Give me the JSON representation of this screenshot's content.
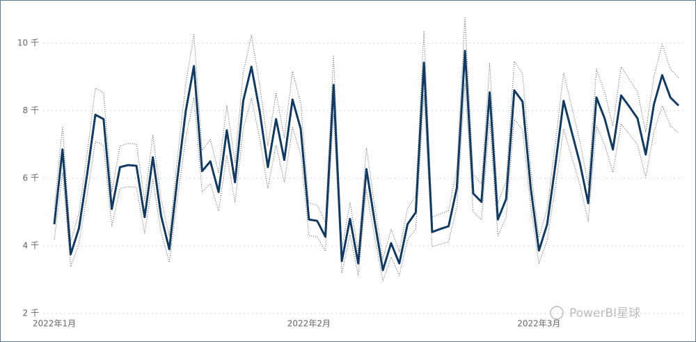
{
  "chart_data": {
    "type": "line",
    "categories": [
      "2022年1月",
      null,
      null,
      null,
      null,
      null,
      null,
      null,
      null,
      null,
      null,
      null,
      null,
      null,
      null,
      null,
      null,
      null,
      null,
      null,
      null,
      null,
      null,
      null,
      null,
      null,
      null,
      null,
      null,
      null,
      null,
      "2022年2月",
      null,
      null,
      null,
      null,
      null,
      null,
      null,
      null,
      null,
      null,
      null,
      null,
      null,
      null,
      null,
      null,
      null,
      null,
      null,
      null,
      null,
      null,
      null,
      null,
      null,
      null,
      null,
      "2022年3月",
      null,
      null,
      null,
      null,
      null,
      null,
      null,
      null,
      null,
      null,
      null,
      null,
      null,
      null,
      null,
      null,
      null
    ],
    "series": [
      {
        "color": "#0e3a63",
        "style": "solid",
        "values": [
          4640,
          6850,
          3750,
          4520,
          6120,
          7880,
          7750,
          5090,
          6330,
          6390,
          6370,
          4850,
          6620,
          4890,
          3900,
          6020,
          7980,
          9320,
          6210,
          6500,
          5590,
          7420,
          5880,
          8290,
          9300,
          7980,
          6330,
          7750,
          6540,
          8330,
          7460,
          4780,
          4740,
          4270,
          8760,
          3550,
          4800,
          3480,
          6270,
          4720,
          3280,
          4080,
          3480,
          4640,
          4990,
          9420,
          4410,
          4500,
          4580,
          5710,
          9770,
          5550,
          5300,
          8540,
          4780,
          5380,
          8600,
          8270,
          5710,
          3860,
          4640,
          6390,
          8290,
          7360,
          6430,
          5260,
          8390,
          7770,
          6850,
          8450,
          8120,
          7770,
          6700,
          8190,
          9050,
          8390,
          8150
        ]
      },
      {
        "color": "#555555",
        "style": "dotted",
        "values": [
          5100,
          7540,
          4130,
          4970,
          6730,
          8670,
          8530,
          5600,
          6960,
          7030,
          7010,
          5340,
          7280,
          5380,
          4290,
          6620,
          8780,
          10250,
          6830,
          7150,
          6150,
          8160,
          6470,
          9120,
          10230,
          8780,
          6960,
          8530,
          7190,
          9160,
          8210,
          5260,
          5210,
          4700,
          9640,
          3910,
          5280,
          3830,
          6900,
          5190,
          3610,
          4490,
          3830,
          5100,
          5490,
          10360,
          4850,
          4950,
          5040,
          6280,
          10750,
          6110,
          5830,
          9390,
          5260,
          5920,
          9460,
          9100,
          6280,
          4250,
          5100,
          7030,
          9120,
          8100,
          7070,
          5790,
          9230,
          8550,
          7540,
          9300,
          8930,
          8550,
          7370,
          9010,
          9960,
          9230,
          8970
        ]
      },
      {
        "color": "#555555",
        "style": "dotted",
        "values": [
          4180,
          6170,
          3380,
          4070,
          5510,
          7090,
          6980,
          4580,
          5700,
          5750,
          5730,
          4370,
          5960,
          4400,
          3510,
          5420,
          7180,
          8390,
          5590,
          5850,
          5030,
          6680,
          5290,
          7460,
          8370,
          7180,
          5700,
          6980,
          5890,
          7500,
          6710,
          4300,
          4270,
          3840,
          7880,
          3200,
          4320,
          3130,
          5640,
          4250,
          2950,
          3670,
          3130,
          4180,
          4490,
          8480,
          3970,
          4050,
          4120,
          5140,
          8790,
          5000,
          4770,
          7690,
          4300,
          4840,
          7740,
          7440,
          5140,
          3470,
          4180,
          5750,
          7460,
          6620,
          5790,
          4730,
          7550,
          6990,
          6170,
          7610,
          7310,
          6990,
          6030,
          7370,
          8150,
          7550,
          7340
        ]
      }
    ],
    "ylim": [
      2000,
      10800
    ],
    "yticks": [
      {
        "value": 2000,
        "label": "2 千"
      },
      {
        "value": 4000,
        "label": "4 千"
      },
      {
        "value": 6000,
        "label": "6 千"
      },
      {
        "value": 8000,
        "label": "8 千"
      },
      {
        "value": 10000,
        "label": "10 千"
      }
    ],
    "grid": true,
    "watermark": "PowerBI星球"
  }
}
